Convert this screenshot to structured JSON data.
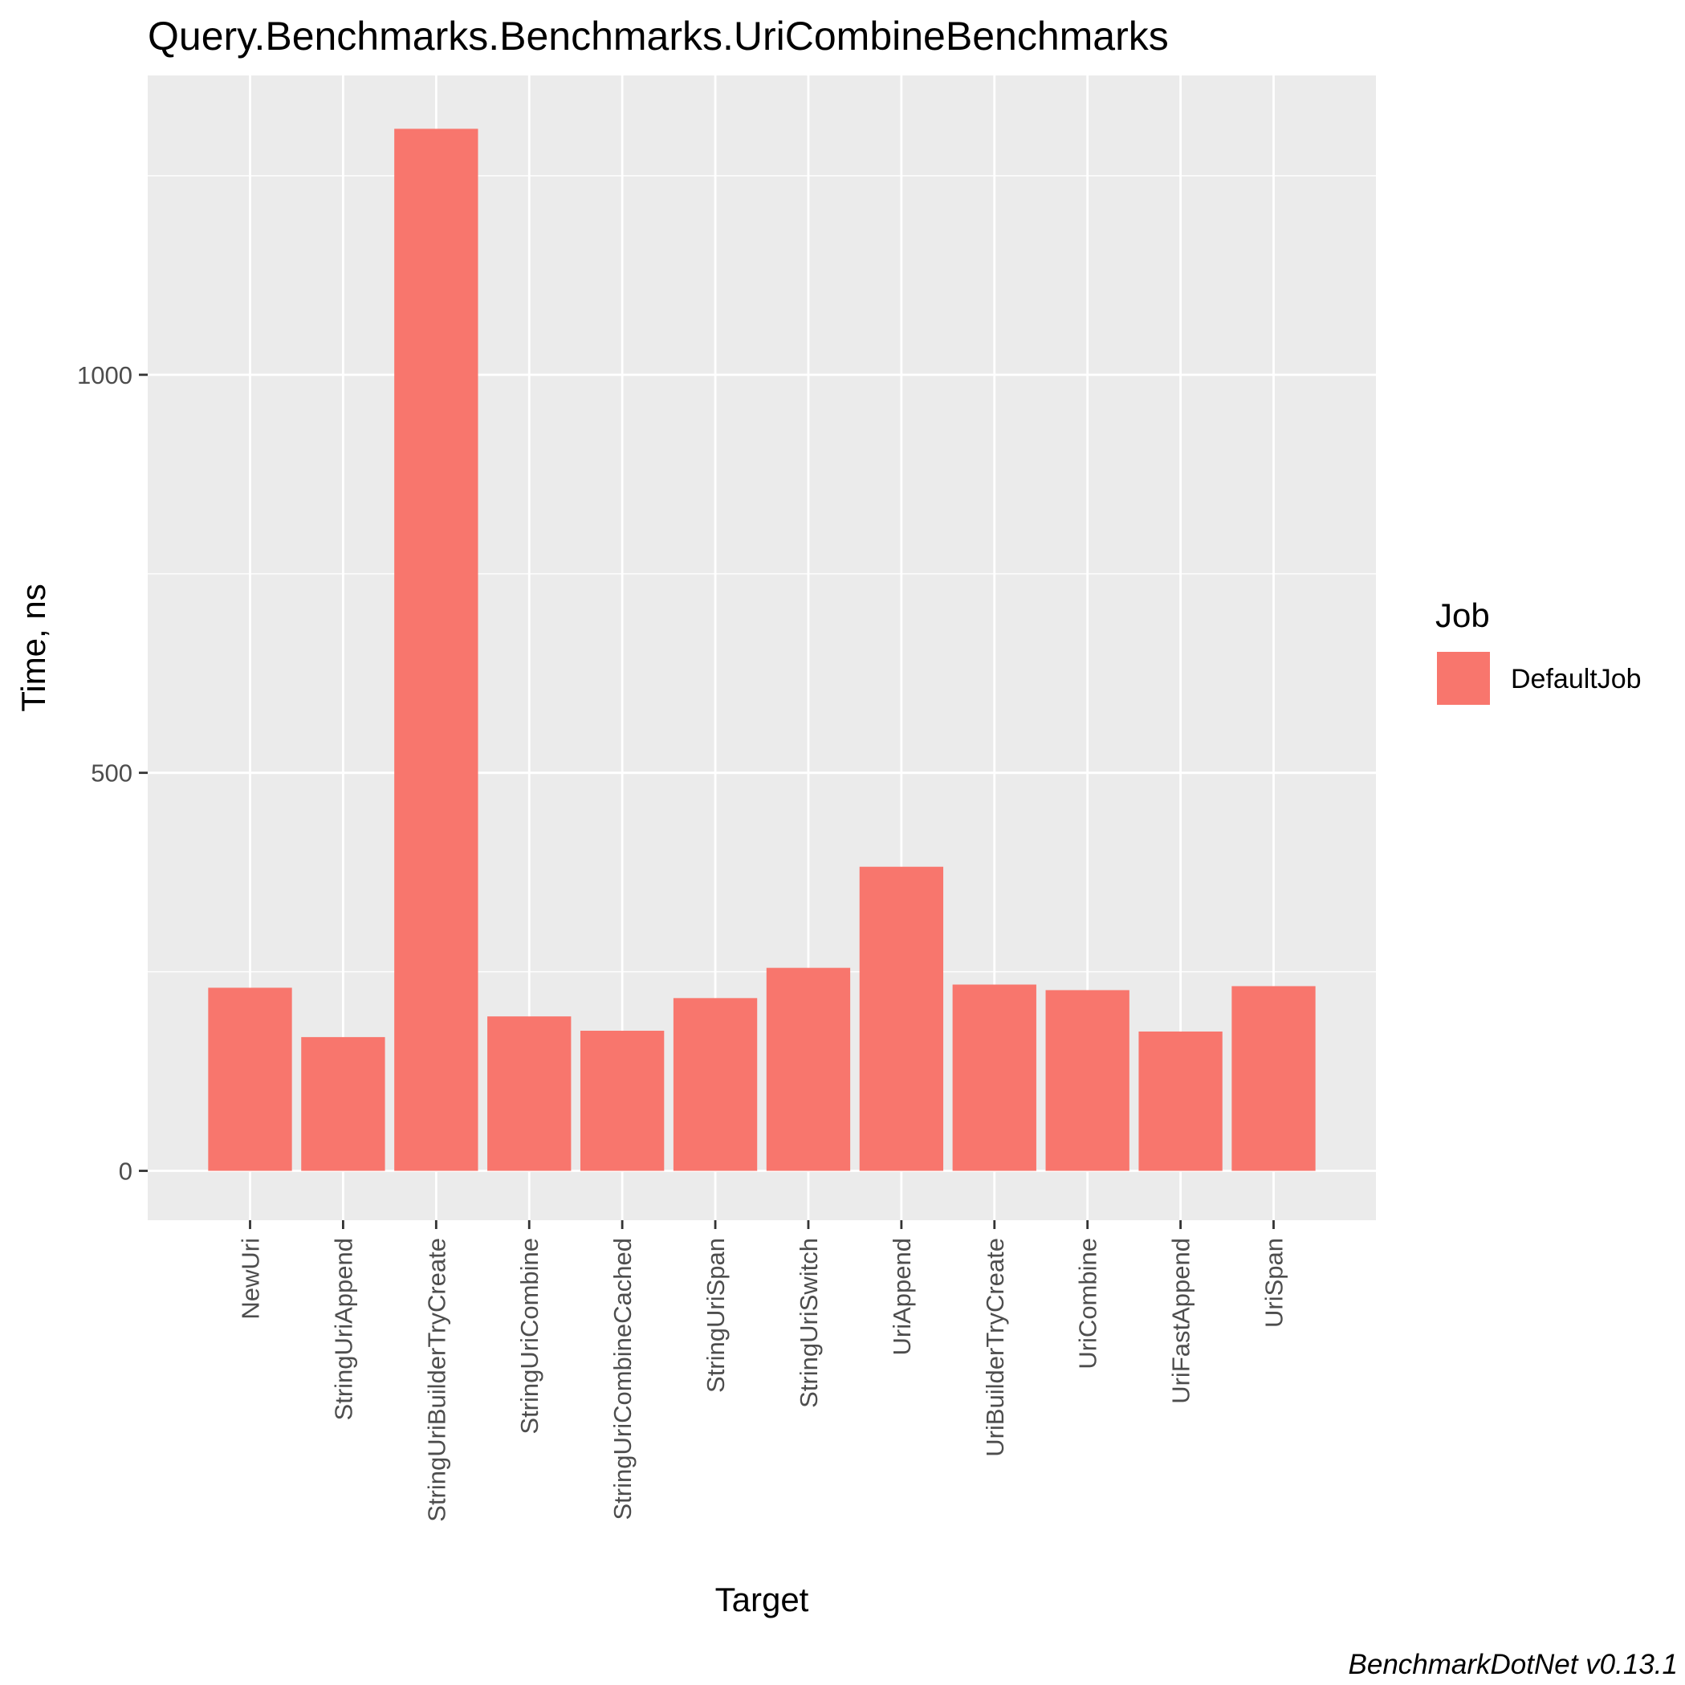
{
  "chart_data": {
    "type": "bar",
    "title": "Query.Benchmarks.Benchmarks.UriCombineBenchmarks",
    "xlabel": "Target",
    "ylabel": "Time, ns",
    "categories": [
      "NewUri",
      "StringUriAppend",
      "StringUriBuilderTryCreate",
      "StringUriCombine",
      "StringUriCombineCached",
      "StringUriSpan",
      "StringUriSwitch",
      "UriAppend",
      "UriBuilderTryCreate",
      "UriCombine",
      "UriFastAppend",
      "UriSpan"
    ],
    "series": [
      {
        "name": "DefaultJob",
        "color": "#F8766D",
        "values": [
          230,
          168,
          1309,
          194,
          176,
          217,
          255,
          382,
          234,
          227,
          175,
          232
        ]
      }
    ],
    "ylim": [
      -62,
      1376
    ],
    "yticks": [
      0,
      500,
      1000
    ],
    "grid": true,
    "legend": {
      "title": "Job",
      "position": "right"
    },
    "caption": "BenchmarkDotNet v0.13.1"
  }
}
